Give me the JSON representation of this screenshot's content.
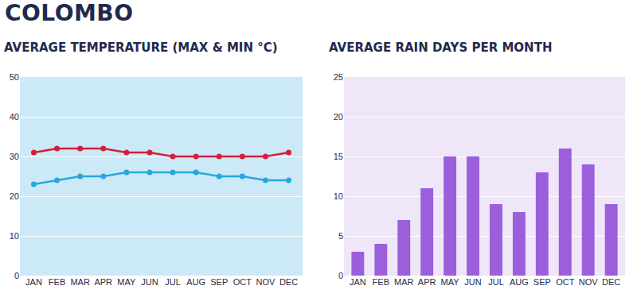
{
  "title": "COLOMBO",
  "chart_data": [
    {
      "type": "line",
      "title": "AVERAGE TEMPERATURE (MAX & MIN °C)",
      "categories": [
        "JAN",
        "FEB",
        "MAR",
        "APR",
        "MAY",
        "JUN",
        "JUL",
        "AUG",
        "SEP",
        "OCT",
        "NOV",
        "DEC"
      ],
      "series": [
        {
          "color": "#d2203c",
          "values": [
            31,
            32,
            32,
            32,
            31,
            31,
            30,
            30,
            30,
            30,
            30,
            31
          ]
        },
        {
          "color": "#2aa6df",
          "values": [
            23,
            24,
            25,
            25,
            26,
            26,
            26,
            26,
            25,
            25,
            24,
            24
          ]
        }
      ],
      "marker": "circle",
      "ylim": [
        0,
        50
      ],
      "yticks": [
        0,
        10,
        20,
        30,
        40,
        50
      ],
      "grid": true
    },
    {
      "type": "bar",
      "title": "AVERAGE RAIN DAYS PER MONTH",
      "categories": [
        "JAN",
        "FEB",
        "MAR",
        "APR",
        "MAY",
        "JUN",
        "JUL",
        "AUG",
        "SEP",
        "OCT",
        "NOV",
        "DEC"
      ],
      "values": [
        3,
        4,
        7,
        11,
        15,
        15,
        9,
        8,
        13,
        16,
        14,
        9
      ],
      "color": "#9b5fdc",
      "ylim": [
        0,
        25
      ],
      "yticks": [
        0,
        5,
        10,
        15,
        20,
        25
      ],
      "grid": true
    }
  ]
}
